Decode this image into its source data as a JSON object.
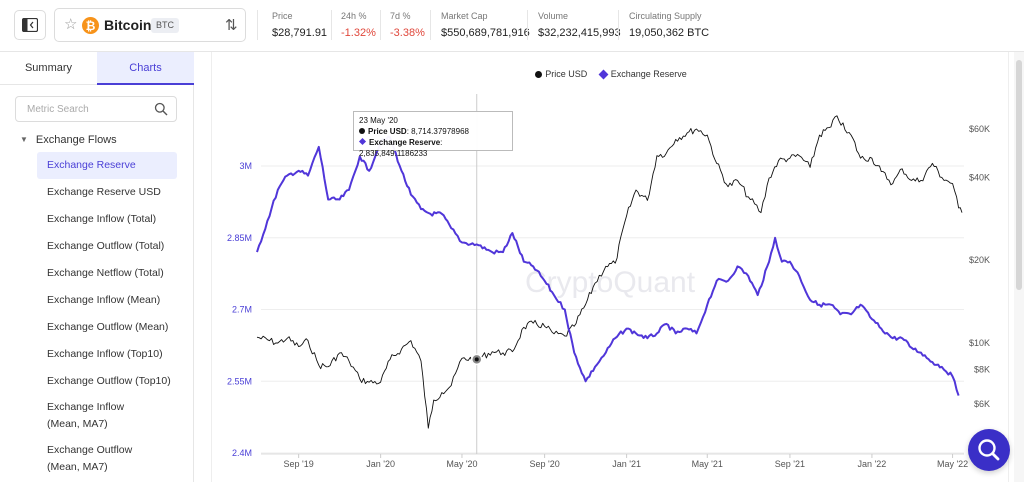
{
  "asset": {
    "name": "Bitcoin",
    "ticker": "BTC",
    "logo_glyph": "₿",
    "logo_color": "#f7931a"
  },
  "stats": [
    {
      "label": "Price",
      "value": "$28,791.91",
      "negative": false
    },
    {
      "label": "24h %",
      "value": "-1.32%",
      "negative": true
    },
    {
      "label": "7d %",
      "value": "-3.38%",
      "negative": true
    },
    {
      "label": "Market Cap",
      "value": "$550,689,781,916",
      "negative": false
    },
    {
      "label": "Volume",
      "value": "$32,232,415,993",
      "negative": false
    },
    {
      "label": "Circulating Supply",
      "value": "19,050,362 BTC",
      "negative": false
    }
  ],
  "sidebar": {
    "tabs": [
      "Summary",
      "Charts"
    ],
    "active_tab": "Charts",
    "search_placeholder": "Metric Search",
    "group_label": "Exchange Flows",
    "items": [
      "Exchange Reserve",
      "Exchange Reserve USD",
      "Exchange Inflow (Total)",
      "Exchange Outflow (Total)",
      "Exchange Netflow (Total)",
      "Exchange Inflow (Mean)",
      "Exchange Outflow (Mean)",
      "Exchange Inflow (Top10)",
      "Exchange Outflow (Top10)",
      "Exchange Inflow (Mean, MA7)",
      "Exchange Outflow (Mean, MA7)"
    ],
    "active_item": "Exchange Reserve"
  },
  "tooltip": {
    "date": "23 May '20",
    "price_label": "Price USD",
    "price_value": "8,714.37978968",
    "reserve_label": "Exchange Reserve",
    "reserve_value": "2,835,849.1186233"
  },
  "watermark": "CryptoQuant",
  "colors": {
    "accent": "#4a3fd6",
    "reserve_line": "#5036d9",
    "price_line": "#111111",
    "negative": "#e0473b"
  },
  "chart_data": {
    "type": "line",
    "title": "",
    "legend": [
      "Price USD",
      "Exchange Reserve"
    ],
    "legend_position": "top-center",
    "x_ticks": [
      "Sep '19",
      "Jan '20",
      "May '20",
      "Sep '20",
      "Jan '21",
      "May '21",
      "Sep '21",
      "Jan '22",
      "May '22"
    ],
    "y_left_ticks": [
      "3M",
      "2.85M",
      "2.7M",
      "2.55M",
      "2.4M"
    ],
    "y_left_range": [
      2400000,
      3000000
    ],
    "y_right_ticks": [
      "$60K",
      "$40K",
      "$20K",
      "$10K",
      "$8K",
      "$6K"
    ],
    "y_right_scale": "log",
    "y_right_range": [
      5000,
      70000
    ],
    "grid": true,
    "series": [
      {
        "name": "Exchange Reserve",
        "axis": "left",
        "x": [
          "2019-07-01",
          "2019-08-01",
          "2019-08-15",
          "2019-09-01",
          "2019-09-15",
          "2019-10-01",
          "2019-10-15",
          "2019-11-01",
          "2019-11-15",
          "2019-12-01",
          "2019-12-15",
          "2020-01-01",
          "2020-01-15",
          "2020-02-01",
          "2020-02-15",
          "2020-03-01",
          "2020-03-15",
          "2020-04-01",
          "2020-04-15",
          "2020-05-01",
          "2020-05-23",
          "2020-06-15",
          "2020-07-01",
          "2020-07-15",
          "2020-08-01",
          "2020-08-15",
          "2020-09-01",
          "2020-09-15",
          "2020-10-01",
          "2020-10-15",
          "2020-11-01",
          "2020-11-15",
          "2020-12-01",
          "2020-12-15",
          "2021-01-01",
          "2021-01-15",
          "2021-02-01",
          "2021-02-15",
          "2021-03-01",
          "2021-03-15",
          "2021-04-01",
          "2021-04-15",
          "2021-05-01",
          "2021-05-15",
          "2021-06-01",
          "2021-06-15",
          "2021-07-01",
          "2021-07-15",
          "2021-08-01",
          "2021-08-10",
          "2021-08-20",
          "2021-09-01",
          "2021-09-15",
          "2021-10-01",
          "2021-10-15",
          "2021-11-01",
          "2021-11-15",
          "2021-12-01",
          "2021-12-15",
          "2022-01-01",
          "2022-01-15",
          "2022-02-01",
          "2022-02-15",
          "2022-03-01",
          "2022-03-15",
          "2022-04-01",
          "2022-04-15",
          "2022-05-01",
          "2022-05-10"
        ],
        "values": [
          2820000,
          2950000,
          2980000,
          2990000,
          2980000,
          3040000,
          2930000,
          2930000,
          2950000,
          3020000,
          2990000,
          3050000,
          3060000,
          2990000,
          2940000,
          2910000,
          2900000,
          2900000,
          2870000,
          2840000,
          2836000,
          2820000,
          2820000,
          2860000,
          2800000,
          2790000,
          2760000,
          2730000,
          2700000,
          2610000,
          2550000,
          2580000,
          2610000,
          2640000,
          2660000,
          2650000,
          2640000,
          2650000,
          2670000,
          2650000,
          2660000,
          2650000,
          2710000,
          2760000,
          2760000,
          2790000,
          2770000,
          2730000,
          2800000,
          2850000,
          2800000,
          2800000,
          2770000,
          2720000,
          2710000,
          2710000,
          2690000,
          2690000,
          2710000,
          2680000,
          2660000,
          2640000,
          2640000,
          2620000,
          2610000,
          2590000,
          2580000,
          2560000,
          2520000
        ]
      },
      {
        "name": "Price USD",
        "axis": "right",
        "x": [
          "2019-07-01",
          "2019-08-01",
          "2019-08-15",
          "2019-09-01",
          "2019-09-15",
          "2019-10-01",
          "2019-10-15",
          "2019-11-01",
          "2019-11-15",
          "2019-12-01",
          "2019-12-15",
          "2020-01-01",
          "2020-01-15",
          "2020-02-01",
          "2020-02-15",
          "2020-03-01",
          "2020-03-12",
          "2020-03-20",
          "2020-04-01",
          "2020-04-15",
          "2020-05-01",
          "2020-05-23",
          "2020-06-15",
          "2020-07-01",
          "2020-07-15",
          "2020-08-01",
          "2020-08-15",
          "2020-09-01",
          "2020-09-15",
          "2020-10-01",
          "2020-10-15",
          "2020-11-01",
          "2020-11-15",
          "2020-12-01",
          "2020-12-15",
          "2021-01-01",
          "2021-01-15",
          "2021-02-01",
          "2021-02-15",
          "2021-03-01",
          "2021-03-15",
          "2021-04-01",
          "2021-04-15",
          "2021-05-01",
          "2021-05-15",
          "2021-06-01",
          "2021-06-15",
          "2021-07-01",
          "2021-07-20",
          "2021-08-01",
          "2021-08-15",
          "2021-09-01",
          "2021-09-15",
          "2021-10-01",
          "2021-10-15",
          "2021-11-01",
          "2021-11-10",
          "2021-11-25",
          "2021-12-01",
          "2021-12-15",
          "2022-01-01",
          "2022-01-15",
          "2022-02-01",
          "2022-02-15",
          "2022-03-01",
          "2022-03-15",
          "2022-04-01",
          "2022-04-15",
          "2022-05-01",
          "2022-05-10",
          "2022-05-15"
        ],
        "values": [
          10500,
          10000,
          10400,
          9700,
          10200,
          8300,
          8200,
          9200,
          8600,
          7400,
          7200,
          7200,
          8700,
          9500,
          10200,
          8600,
          4900,
          6200,
          6600,
          7000,
          8800,
          8714,
          9300,
          9200,
          9300,
          11400,
          11800,
          11500,
          10800,
          10600,
          11500,
          13800,
          16500,
          19000,
          19500,
          29000,
          36000,
          33000,
          48000,
          49000,
          55000,
          58000,
          60000,
          57000,
          45000,
          37000,
          39000,
          34000,
          29800,
          39800,
          46000,
          47000,
          48000,
          43500,
          57000,
          61000,
          67000,
          58000,
          57000,
          47000,
          47000,
          42000,
          38000,
          43000,
          39000,
          39000,
          45000,
          40000,
          38000,
          31000,
          29800
        ]
      }
    ],
    "annotations": [
      {
        "x": "2020-05-23",
        "type": "crosshair"
      }
    ]
  }
}
